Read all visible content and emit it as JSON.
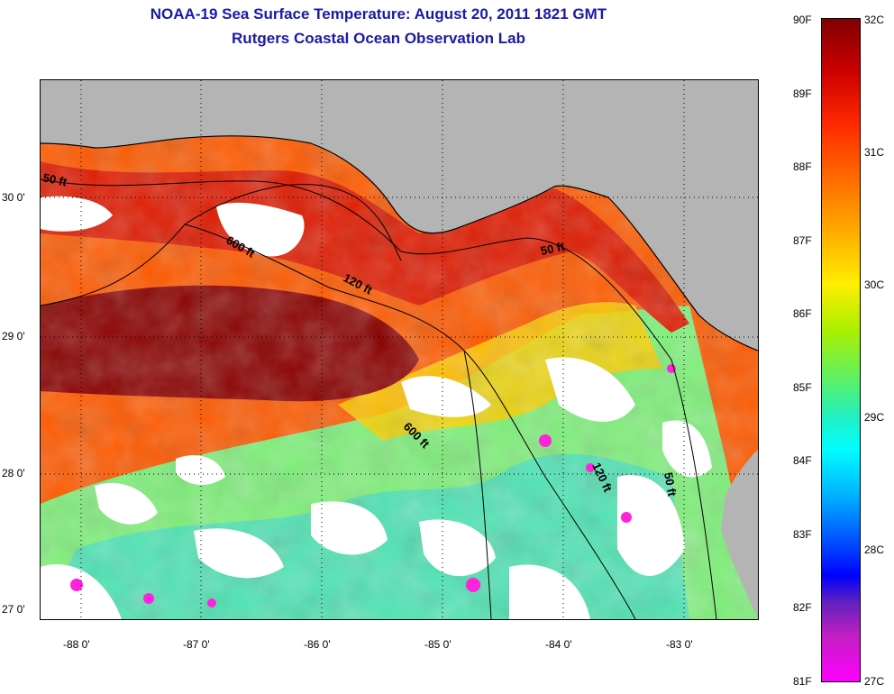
{
  "title": "NOAA-19 Sea Surface Temperature:  August 20, 2011 1821 GMT",
  "subtitle": "Rutgers Coastal Ocean Observation Lab",
  "map": {
    "lat_ticks": [
      "30 0'",
      "29 0'",
      "28 0'",
      "27 0'"
    ],
    "lon_ticks": [
      "-88 0'",
      "-87 0'",
      "-86 0'",
      "-85 0'",
      "-84 0'",
      "-83 0'"
    ],
    "contour_labels": [
      "50 ft",
      "600 ft",
      "120 ft",
      "50 ft",
      "600 ft",
      "120 ft",
      "50 ft"
    ],
    "colors": {
      "land": "#b4b4b4",
      "cloud": "#ffffff",
      "warmest": "#8b0000",
      "coolest": "#ff00ff"
    }
  },
  "colorbar": {
    "f_labels": [
      "90F",
      "89F",
      "88F",
      "87F",
      "86F",
      "85F",
      "84F",
      "83F",
      "82F",
      "81F"
    ],
    "c_labels": [
      "32C",
      "31C",
      "30C",
      "29C",
      "28C",
      "27C"
    ]
  }
}
